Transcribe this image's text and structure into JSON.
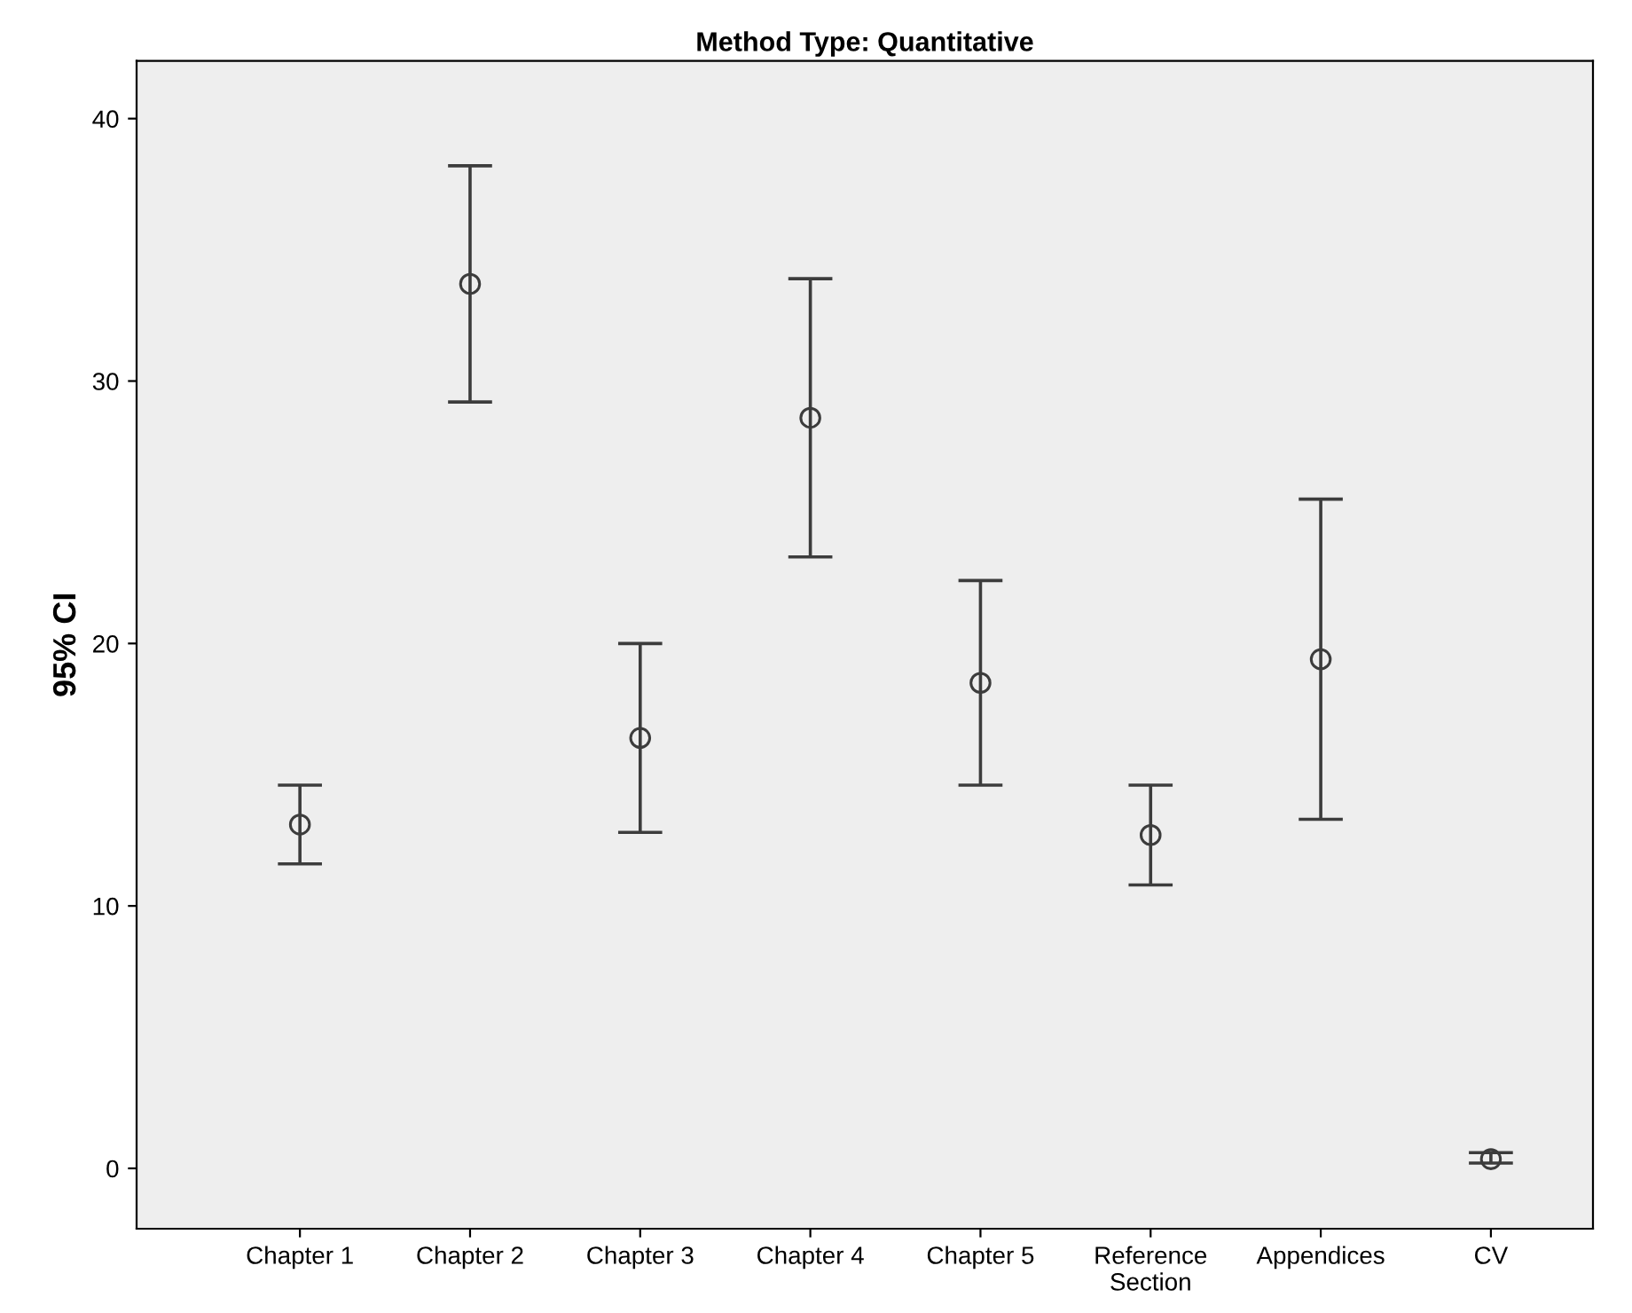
{
  "chart_data": {
    "type": "scatter",
    "title": "Method Type: Quantitative",
    "ylabel": "95% CI",
    "categories": [
      "Chapter 1",
      "Chapter 2",
      "Chapter 3",
      "Chapter 4",
      "Chapter 5",
      "Reference\nSection",
      "Appendices",
      "CV"
    ],
    "series": [
      {
        "color": "#3c3c3c",
        "values": [
          13.1,
          33.7,
          16.4,
          28.6,
          18.5,
          12.7,
          19.4,
          0.35
        ],
        "errors": [
          [
            11.6,
            14.6
          ],
          [
            29.2,
            38.2
          ],
          [
            12.8,
            20.0
          ],
          [
            23.3,
            33.9
          ],
          [
            14.6,
            22.4
          ],
          [
            10.8,
            14.6
          ],
          [
            13.3,
            25.5
          ],
          [
            0.2,
            0.6
          ]
        ]
      }
    ],
    "ylim": [
      -2.3,
      42.2
    ],
    "yticks": [
      0,
      10,
      20,
      30,
      40
    ],
    "marker": "circle",
    "grid": false
  }
}
